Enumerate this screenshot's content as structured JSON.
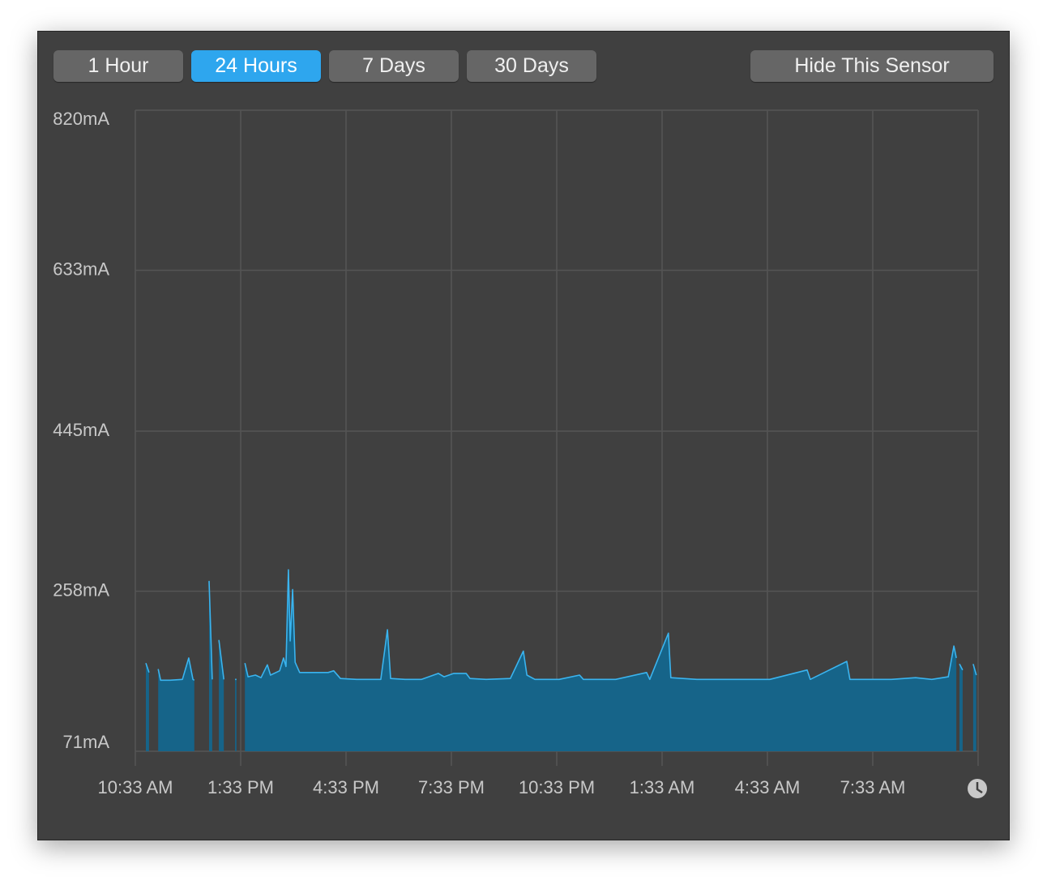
{
  "buttons": [
    {
      "label": "1 Hour",
      "active": false
    },
    {
      "label": "24 Hours",
      "active": true
    },
    {
      "label": "7 Days",
      "active": false
    },
    {
      "label": "30 Days",
      "active": false
    }
  ],
  "hide_button": "Hide This Sensor",
  "chart_data": {
    "type": "area",
    "xlim": [
      0,
      24
    ],
    "xticks": [
      {
        "value": 0,
        "label": "10:33 AM"
      },
      {
        "value": 3,
        "label": "1:33 PM"
      },
      {
        "value": 6,
        "label": "4:33 PM"
      },
      {
        "value": 9,
        "label": "7:33 PM"
      },
      {
        "value": 12,
        "label": "10:33 PM"
      },
      {
        "value": 15,
        "label": "1:33 AM"
      },
      {
        "value": 18,
        "label": "4:33 AM"
      },
      {
        "value": 21,
        "label": "7:33 AM"
      }
    ],
    "ylim": [
      71,
      820
    ],
    "yticks": [
      {
        "value": 71,
        "label": "71mA"
      },
      {
        "value": 258,
        "label": "258mA"
      },
      {
        "value": 445,
        "label": "445mA"
      },
      {
        "value": 633,
        "label": "633mA"
      },
      {
        "value": 820,
        "label": "820mA"
      }
    ],
    "grid": true,
    "color": "#3ab4ef",
    "fill_color": "#166489",
    "x": [
      0.3,
      0.39,
      null,
      0.65,
      0.72,
      0.99,
      1.34,
      1.52,
      1.64,
      1.68,
      null,
      2.1,
      2.19,
      null,
      2.38,
      2.52,
      null,
      2.84,
      2.88,
      null,
      3.12,
      3.21,
      3.42,
      3.58,
      3.76,
      3.85,
      4.11,
      4.22,
      4.29,
      4.36,
      4.41,
      4.48,
      4.55,
      4.68,
      5.15,
      5.49,
      5.65,
      5.84,
      6.3,
      6.99,
      7.18,
      7.27,
      7.68,
      8.15,
      8.63,
      8.79,
      9.07,
      9.42,
      9.53,
      9.99,
      10.68,
      11.05,
      11.15,
      11.38,
      12.07,
      12.65,
      12.76,
      13.68,
      14.56,
      14.65,
      15.18,
      15.25,
      15.99,
      16.92,
      18.07,
      19.13,
      19.22,
      20.26,
      20.35,
      21.07,
      21.53,
      22.22,
      22.68,
      23.15,
      23.31,
      23.38,
      null,
      23.47,
      23.56,
      null,
      23.86,
      23.95
    ],
    "values": [
      174,
      163,
      null,
      167,
      154,
      154,
      155,
      180,
      155,
      154,
      null,
      270,
      155,
      null,
      201,
      155,
      null,
      155,
      155,
      null,
      174,
      158,
      160,
      157,
      172,
      160,
      165,
      180,
      170,
      283,
      200,
      260,
      175,
      163,
      163,
      163,
      165,
      156,
      155,
      155,
      213,
      156,
      155,
      155,
      162,
      158,
      162,
      162,
      156,
      155,
      156,
      188,
      160,
      155,
      155,
      160,
      155,
      155,
      163,
      155,
      209,
      157,
      155,
      155,
      155,
      166,
      155,
      176,
      155,
      155,
      155,
      157,
      155,
      158,
      194,
      180,
      null,
      173,
      166,
      null,
      173,
      160
    ]
  }
}
